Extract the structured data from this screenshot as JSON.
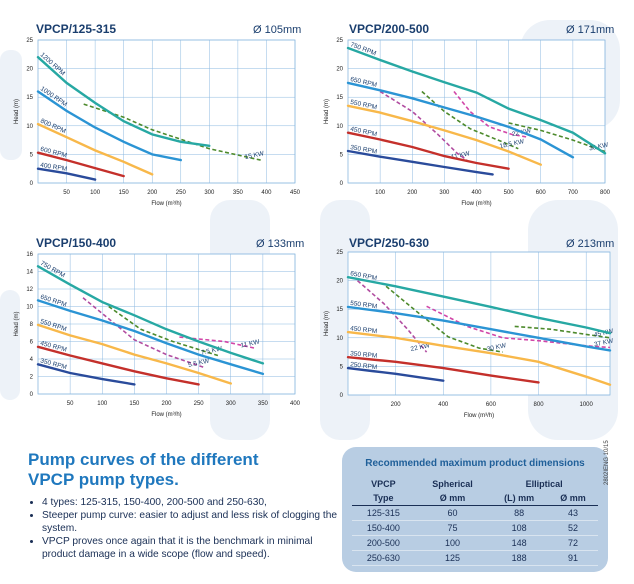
{
  "colors": {
    "speed1": "#2a4b9b",
    "speed2": "#c4302b",
    "speed3": "#f8b84a",
    "speed4": "#2b94d4",
    "speed5": "#27a8a3",
    "power": "#4d8a2c",
    "power_alt": "#b14ca0",
    "power_alt2": "#d146a8",
    "grid": "#8cb9e0",
    "text": "#1a3e6e",
    "accent": "#1f78be",
    "bg_shape": "#edf2f8"
  },
  "chart_data": [
    {
      "type": "line",
      "title": "VPCP/125-315",
      "diameter": "Ø 105mm",
      "xlabel": "Flow (m³/h)",
      "ylabel": "Head (m)",
      "xlim": [
        0,
        450
      ],
      "ylim": [
        0,
        25
      ],
      "xticks": [
        50,
        100,
        150,
        200,
        250,
        300,
        350,
        400,
        450
      ],
      "yticks": [
        0,
        5,
        10,
        15,
        20,
        25
      ],
      "series": [
        {
          "name": "400 RPM",
          "color": "speed1",
          "points": [
            [
              0,
              2.5
            ],
            [
              50,
              1.7
            ],
            [
              100,
              0.6
            ]
          ]
        },
        {
          "name": "600 RPM",
          "color": "speed2",
          "points": [
            [
              0,
              5.3
            ],
            [
              50,
              4
            ],
            [
              100,
              2.6
            ],
            [
              150,
              1.2
            ]
          ]
        },
        {
          "name": "800 RPM",
          "color": "speed3",
          "points": [
            [
              0,
              10.3
            ],
            [
              50,
              8
            ],
            [
              100,
              5.7
            ],
            [
              150,
              3.7
            ],
            [
              200,
              1.5
            ]
          ]
        },
        {
          "name": "1000 RPM",
          "color": "speed4",
          "points": [
            [
              0,
              16
            ],
            [
              50,
              12.6
            ],
            [
              100,
              9.7
            ],
            [
              150,
              7.2
            ],
            [
              200,
              5
            ],
            [
              250,
              4
            ]
          ]
        },
        {
          "name": "1200 RPM",
          "color": "speed5",
          "points": [
            [
              0,
              22
            ],
            [
              50,
              17.5
            ],
            [
              100,
              14
            ],
            [
              150,
              10.8
            ],
            [
              200,
              8.5
            ],
            [
              250,
              7.2
            ],
            [
              300,
              6.5
            ]
          ]
        }
      ],
      "power": [
        {
          "name": "15 KW",
          "color": "power",
          "points": [
            [
              80,
              13.8
            ],
            [
              150,
              11.5
            ],
            [
              200,
              9.3
            ],
            [
              300,
              6
            ],
            [
              390,
              4
            ]
          ]
        }
      ]
    },
    {
      "type": "line",
      "title": "VPCP/200-500",
      "diameter": "Ø 171mm",
      "xlabel": "Flow (m³/h)",
      "ylabel": "Head (m)",
      "xlim": [
        0,
        800
      ],
      "ylim": [
        0,
        25
      ],
      "xticks": [
        100,
        200,
        300,
        400,
        500,
        600,
        700,
        800
      ],
      "yticks": [
        0,
        5,
        10,
        15,
        20,
        25
      ],
      "series": [
        {
          "name": "350 RPM",
          "color": "speed1",
          "points": [
            [
              0,
              5.6
            ],
            [
              100,
              4.6
            ],
            [
              200,
              3.7
            ],
            [
              300,
              2.8
            ],
            [
              400,
              1.9
            ],
            [
              450,
              1.5
            ]
          ]
        },
        {
          "name": "450 RPM",
          "color": "speed2",
          "points": [
            [
              0,
              8.8
            ],
            [
              100,
              7.6
            ],
            [
              200,
              6.3
            ],
            [
              300,
              4.7
            ],
            [
              400,
              3.5
            ],
            [
              500,
              2.5
            ]
          ]
        },
        {
          "name": "550 RPM",
          "color": "speed3",
          "points": [
            [
              0,
              13.5
            ],
            [
              100,
              12.3
            ],
            [
              200,
              10.8
            ],
            [
              300,
              9.2
            ],
            [
              400,
              7.5
            ],
            [
              500,
              5.5
            ],
            [
              600,
              3.2
            ]
          ]
        },
        {
          "name": "650 RPM",
          "color": "speed4",
          "points": [
            [
              0,
              17.5
            ],
            [
              100,
              16.2
            ],
            [
              200,
              14.8
            ],
            [
              300,
              13.2
            ],
            [
              400,
              11.6
            ],
            [
              500,
              9.8
            ],
            [
              600,
              7.6
            ],
            [
              700,
              4.5
            ]
          ]
        },
        {
          "name": "750 RPM",
          "color": "speed5",
          "points": [
            [
              0,
              23.6
            ],
            [
              100,
              21.5
            ],
            [
              200,
              19.5
            ],
            [
              300,
              17.6
            ],
            [
              400,
              15.8
            ],
            [
              500,
              13
            ],
            [
              600,
              11
            ],
            [
              700,
              8.8
            ],
            [
              800,
              5.2
            ]
          ]
        }
      ],
      "power": [
        {
          "name": "11 KW",
          "color": "power_alt",
          "points": [
            [
              100,
              16
            ],
            [
              200,
              12.5
            ],
            [
              280,
              8.5
            ],
            [
              340,
              5.2
            ],
            [
              370,
              4
            ]
          ]
        },
        {
          "name": "18.5 KW",
          "color": "power",
          "points": [
            [
              230,
              16
            ],
            [
              300,
              12.5
            ],
            [
              380,
              9.5
            ],
            [
              480,
              7.2
            ],
            [
              530,
              6
            ]
          ]
        },
        {
          "name": "22 KW",
          "color": "power_alt2",
          "points": [
            [
              330,
              16
            ],
            [
              380,
              12.5
            ],
            [
              440,
              9.8
            ],
            [
              510,
              8.5
            ],
            [
              560,
              8
            ]
          ]
        },
        {
          "name": "30 KW",
          "color": "power",
          "points": [
            [
              500,
              10.5
            ],
            [
              600,
              9.2
            ],
            [
              700,
              7.5
            ],
            [
              800,
              5.5
            ]
          ]
        }
      ]
    },
    {
      "type": "line",
      "title": "VPCP/150-400",
      "diameter": "Ø 133mm",
      "xlabel": "Flow (m³/h)",
      "ylabel": "Head (m)",
      "xlim": [
        0,
        400
      ],
      "ylim": [
        0,
        16
      ],
      "xticks": [
        50,
        100,
        150,
        200,
        250,
        300,
        350,
        400
      ],
      "yticks": [
        0,
        2,
        4,
        6,
        8,
        10,
        12,
        14,
        16
      ],
      "series": [
        {
          "name": "350 RPM",
          "color": "speed1",
          "points": [
            [
              0,
              3.4
            ],
            [
              50,
              2.4
            ],
            [
              100,
              1.7
            ],
            [
              150,
              1.1
            ]
          ]
        },
        {
          "name": "450 RPM",
          "color": "speed2",
          "points": [
            [
              0,
              5.4
            ],
            [
              50,
              4.4
            ],
            [
              100,
              3.5
            ],
            [
              150,
              2.6
            ],
            [
              200,
              1.8
            ],
            [
              250,
              1.1
            ]
          ]
        },
        {
          "name": "550 RPM",
          "color": "speed3",
          "points": [
            [
              0,
              7.9
            ],
            [
              50,
              6.7
            ],
            [
              100,
              5.7
            ],
            [
              150,
              4.5
            ],
            [
              200,
              3.5
            ],
            [
              250,
              2.4
            ],
            [
              300,
              1.2
            ]
          ]
        },
        {
          "name": "650 RPM",
          "color": "speed4",
          "points": [
            [
              0,
              10.7
            ],
            [
              50,
              9.5
            ],
            [
              100,
              8.4
            ],
            [
              150,
              7.2
            ],
            [
              200,
              5.8
            ],
            [
              250,
              4.5
            ],
            [
              300,
              3.4
            ],
            [
              350,
              2.3
            ]
          ]
        },
        {
          "name": "750 RPM",
          "color": "speed5",
          "points": [
            [
              0,
              14.6
            ],
            [
              50,
              12.5
            ],
            [
              100,
              10.5
            ],
            [
              150,
              9
            ],
            [
              200,
              7.4
            ],
            [
              250,
              6
            ],
            [
              300,
              4.7
            ],
            [
              350,
              3.5
            ]
          ]
        }
      ],
      "power": [
        {
          "name": "5.5 KW",
          "color": "power_alt",
          "points": [
            [
              70,
              11
            ],
            [
              120,
              8
            ],
            [
              150,
              6.2
            ],
            [
              200,
              4.5
            ],
            [
              260,
              3
            ]
          ]
        },
        {
          "name": "7.5 KW",
          "color": "power",
          "points": [
            [
              110,
              10
            ],
            [
              160,
              7.4
            ],
            [
              210,
              6
            ],
            [
              280,
              4.4
            ]
          ]
        },
        {
          "name": "11 KW",
          "color": "power_alt2",
          "points": [
            [
              220,
              6.5
            ],
            [
              290,
              6
            ],
            [
              340,
              5.2
            ]
          ]
        }
      ]
    },
    {
      "type": "line",
      "title": "VPCP/250-630",
      "diameter": "Ø 213mm",
      "xlabel": "Flow (m³/h)",
      "ylabel": "Head (m)",
      "xlim": [
        0,
        1100
      ],
      "ylim": [
        0,
        25
      ],
      "xticks": [
        200,
        400,
        600,
        800,
        1000
      ],
      "yticks": [
        0,
        5,
        10,
        15,
        20,
        25
      ],
      "series": [
        {
          "name": "250 RPM",
          "color": "speed1",
          "points": [
            [
              0,
              4.7
            ],
            [
              100,
              4.2
            ],
            [
              200,
              3.7
            ],
            [
              300,
              3.1
            ],
            [
              400,
              2.5
            ]
          ]
        },
        {
          "name": "350 RPM",
          "color": "speed2",
          "points": [
            [
              0,
              6.6
            ],
            [
              200,
              5.8
            ],
            [
              400,
              4.7
            ],
            [
              600,
              3.4
            ],
            [
              800,
              2.2
            ]
          ]
        },
        {
          "name": "450 RPM",
          "color": "speed3",
          "points": [
            [
              0,
              11
            ],
            [
              200,
              10
            ],
            [
              400,
              8.6
            ],
            [
              600,
              7.3
            ],
            [
              800,
              5.8
            ],
            [
              1000,
              3.2
            ],
            [
              1100,
              1.8
            ]
          ]
        },
        {
          "name": "550 RPM",
          "color": "speed4",
          "points": [
            [
              0,
              15.4
            ],
            [
              200,
              14.3
            ],
            [
              400,
              13
            ],
            [
              600,
              11.5
            ],
            [
              800,
              10
            ],
            [
              1000,
              8.5
            ],
            [
              1100,
              7.8
            ]
          ]
        },
        {
          "name": "650 RPM",
          "color": "speed5",
          "points": [
            [
              0,
              20.6
            ],
            [
              200,
              19
            ],
            [
              400,
              17.2
            ],
            [
              600,
              15.4
            ],
            [
              800,
              13.5
            ],
            [
              1000,
              11.8
            ],
            [
              1100,
              10.8
            ]
          ]
        }
      ],
      "power": [
        {
          "name": "22 KW",
          "color": "power_alt",
          "points": [
            [
              40,
              20
            ],
            [
              150,
              16
            ],
            [
              250,
              11.5
            ],
            [
              330,
              7.5
            ]
          ]
        },
        {
          "name": "30 KW",
          "color": "power",
          "points": [
            [
              160,
              19
            ],
            [
              300,
              14.2
            ],
            [
              420,
              10.2
            ],
            [
              550,
              8.2
            ],
            [
              650,
              7.5
            ]
          ]
        },
        {
          "name": "37 KW",
          "color": "power_alt2",
          "points": [
            [
              330,
              15.5
            ],
            [
              500,
              12
            ],
            [
              650,
              10
            ],
            [
              800,
              9.5
            ],
            [
              1000,
              8.6
            ],
            [
              1100,
              8.3
            ]
          ]
        },
        {
          "name": "45 KW",
          "color": "power",
          "points": [
            [
              700,
              12
            ],
            [
              850,
              11.5
            ],
            [
              1000,
              10.6
            ],
            [
              1100,
              10
            ]
          ]
        }
      ]
    }
  ],
  "text": {
    "heading_line1": "Pump curves of the different",
    "heading_line2": "VPCP pump types.",
    "bullet1": "4 types: 125-315, 150-400, 200-500 and 250-630,",
    "bullet2": "Steeper pump curve: easier to adjust and less risk of clogging the system.",
    "bullet3": "VPCP proves once again that it is the benchmark in minimal product damage in a wide scope (flow and speed).",
    "side_code": "2802IENG 10/15"
  },
  "dim_table": {
    "title": "Recommended maximum product dimensions",
    "h1": [
      "VPCP",
      "Spherical",
      "Elliptical"
    ],
    "h2": [
      "Type",
      "Ø mm",
      "(L) mm",
      "Ø mm"
    ],
    "rows": [
      [
        "125-315",
        "60",
        "88",
        "43"
      ],
      [
        "150-400",
        "75",
        "108",
        "52"
      ],
      [
        "200-500",
        "100",
        "148",
        "72"
      ],
      [
        "250-630",
        "125",
        "188",
        "91"
      ]
    ]
  }
}
